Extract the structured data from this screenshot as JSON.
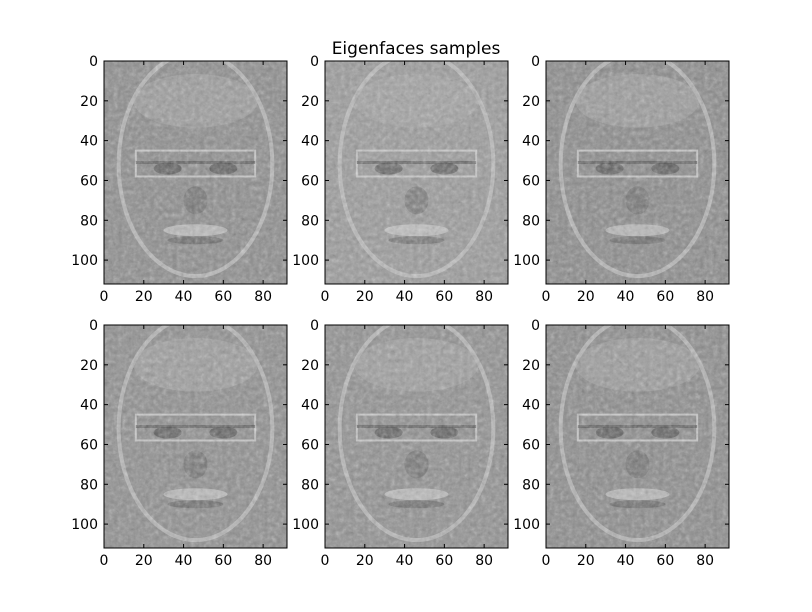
{
  "figure": {
    "title": "Eigenfaces samples",
    "colormap": "gray"
  },
  "chart_data": {
    "type": "heatmap",
    "title": "Eigenfaces samples",
    "grid": false,
    "image_shape": [
      112,
      92
    ],
    "panels": [
      {
        "xlim": [
          0,
          92
        ],
        "ylim": [
          112,
          0
        ],
        "xticks": [
          0,
          20,
          40,
          60,
          80
        ],
        "yticks": [
          0,
          20,
          40,
          60,
          80,
          100
        ]
      },
      {
        "xlim": [
          0,
          92
        ],
        "ylim": [
          112,
          0
        ],
        "xticks": [
          0,
          20,
          40,
          60,
          80
        ],
        "yticks": [
          0,
          20,
          40,
          60,
          80,
          100
        ]
      },
      {
        "xlim": [
          0,
          92
        ],
        "ylim": [
          112,
          0
        ],
        "xticks": [
          0,
          20,
          40,
          60,
          80
        ],
        "yticks": [
          0,
          20,
          40,
          60,
          80,
          100
        ]
      },
      {
        "xlim": [
          0,
          92
        ],
        "ylim": [
          112,
          0
        ],
        "xticks": [
          0,
          20,
          40,
          60,
          80
        ],
        "yticks": [
          0,
          20,
          40,
          60,
          80,
          100
        ]
      },
      {
        "xlim": [
          0,
          92
        ],
        "ylim": [
          112,
          0
        ],
        "xticks": [
          0,
          20,
          40,
          60,
          80
        ],
        "yticks": [
          0,
          20,
          40,
          60,
          80,
          100
        ]
      },
      {
        "xlim": [
          0,
          92
        ],
        "ylim": [
          112,
          0
        ],
        "xticks": [
          0,
          20,
          40,
          60,
          80
        ],
        "yticks": [
          0,
          20,
          40,
          60,
          80,
          100
        ]
      }
    ]
  }
}
